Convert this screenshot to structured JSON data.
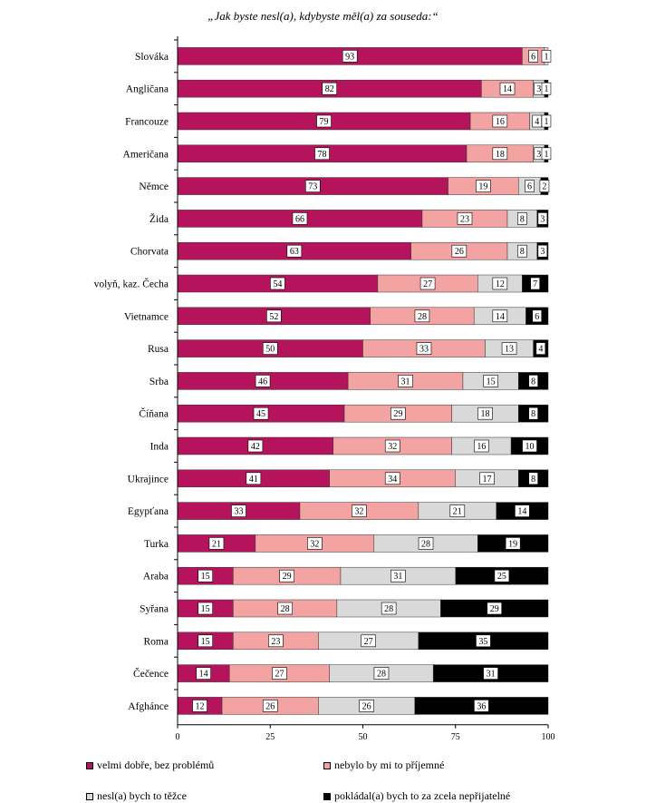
{
  "chart_data": {
    "type": "bar",
    "orientation": "horizontal",
    "stacked": true,
    "title": "„Jak byste nesl(a), kdybyste měl(a) za souseda:“",
    "categories": [
      "Slováka",
      "Angličana",
      "Francouze",
      "Američana",
      "Němce",
      "Žida",
      "Chorvata",
      "volyň, kaz. Čecha",
      "Vietnamce",
      "Rusa",
      "Srba",
      "Číňana",
      "Inda",
      "Ukrajince",
      "Egypťana",
      "Turka",
      "Araba",
      "Syřana",
      "Roma",
      "Čečence",
      "Afghánce"
    ],
    "series": [
      {
        "name": "velmi dobře, bez problémů",
        "color": "#B5145D",
        "values": [
          93,
          82,
          79,
          78,
          73,
          66,
          63,
          54,
          52,
          50,
          46,
          45,
          42,
          41,
          33,
          21,
          15,
          15,
          15,
          14,
          12
        ]
      },
      {
        "name": "nebylo by mi to příjemné",
        "color": "#F4A3A3",
        "values": [
          6,
          14,
          16,
          18,
          19,
          23,
          26,
          27,
          28,
          33,
          31,
          29,
          32,
          34,
          32,
          32,
          29,
          28,
          23,
          27,
          26
        ]
      },
      {
        "name": "nesl(a) bych to těžce",
        "color": "#D9D9D9",
        "values": [
          1,
          3,
          4,
          3,
          6,
          8,
          8,
          12,
          14,
          13,
          15,
          18,
          16,
          17,
          21,
          28,
          31,
          28,
          27,
          28,
          26
        ]
      },
      {
        "name": "pokládal(a) bych to za zcela nepřijatelné",
        "color": "#000000",
        "values": [
          0,
          1,
          1,
          1,
          2,
          3,
          3,
          7,
          6,
          4,
          8,
          8,
          10,
          8,
          14,
          19,
          25,
          29,
          35,
          31,
          36
        ]
      }
    ],
    "xlim": [
      0,
      100
    ],
    "xticks": [
      0,
      25,
      50,
      75,
      100
    ],
    "grid": false,
    "legend_position": "bottom"
  }
}
